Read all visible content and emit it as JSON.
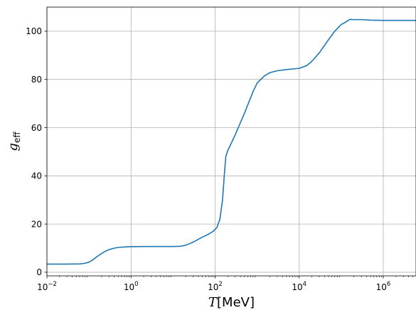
{
  "chart_data": {
    "type": "line",
    "x_scale": "log",
    "xlim": [
      0.01,
      6000000
    ],
    "ylim": [
      -1.5,
      110
    ],
    "grid": true,
    "xlabel": {
      "main": "T",
      "unit": "[MeV]"
    },
    "ylabel": {
      "main": "g",
      "sub": "eff"
    },
    "x_ticks": [
      {
        "value": 0.01,
        "base": "10",
        "exp": "−2"
      },
      {
        "value": 1,
        "base": "10",
        "exp": "0"
      },
      {
        "value": 100,
        "base": "10",
        "exp": "2"
      },
      {
        "value": 10000,
        "base": "10",
        "exp": "4"
      },
      {
        "value": 1000000,
        "base": "10",
        "exp": "6"
      }
    ],
    "y_ticks": [
      {
        "value": 0,
        "label": "0"
      },
      {
        "value": 20,
        "label": "20"
      },
      {
        "value": 40,
        "label": "40"
      },
      {
        "value": 60,
        "label": "60"
      },
      {
        "value": 80,
        "label": "80"
      },
      {
        "value": 100,
        "label": "100"
      }
    ],
    "series": [
      {
        "color": "#1f77b4",
        "x": [
          0.01,
          0.03,
          0.06,
          0.08,
          0.1,
          0.12,
          0.15,
          0.2,
          0.25,
          0.3,
          0.4,
          0.5,
          0.7,
          1,
          2,
          5,
          10,
          15,
          20,
          30,
          50,
          70,
          90,
          110,
          130,
          150,
          165,
          180,
          200,
          220,
          300,
          500,
          800,
          1000,
          1500,
          2000,
          3000,
          5000,
          10000,
          15000,
          20000,
          30000,
          50000,
          70000,
          100000,
          120000,
          150000,
          160000,
          200000,
          300000,
          500000,
          1000000,
          3000000,
          6000000
        ],
        "y": [
          3.4,
          3.4,
          3.45,
          3.7,
          4.2,
          5.0,
          6.3,
          7.8,
          8.8,
          9.4,
          10.0,
          10.3,
          10.5,
          10.6,
          10.7,
          10.7,
          10.7,
          10.8,
          11.2,
          12.5,
          14.6,
          15.8,
          17.0,
          18.5,
          22.0,
          30.0,
          40.0,
          48.0,
          50.5,
          52.0,
          57.0,
          66.0,
          75.0,
          78.5,
          81.5,
          82.8,
          83.6,
          84.1,
          84.6,
          85.7,
          87.5,
          91.0,
          96.5,
          100.0,
          102.8,
          103.5,
          104.6,
          104.9,
          104.8,
          104.8,
          104.6,
          104.5,
          104.5,
          104.5
        ]
      }
    ]
  }
}
